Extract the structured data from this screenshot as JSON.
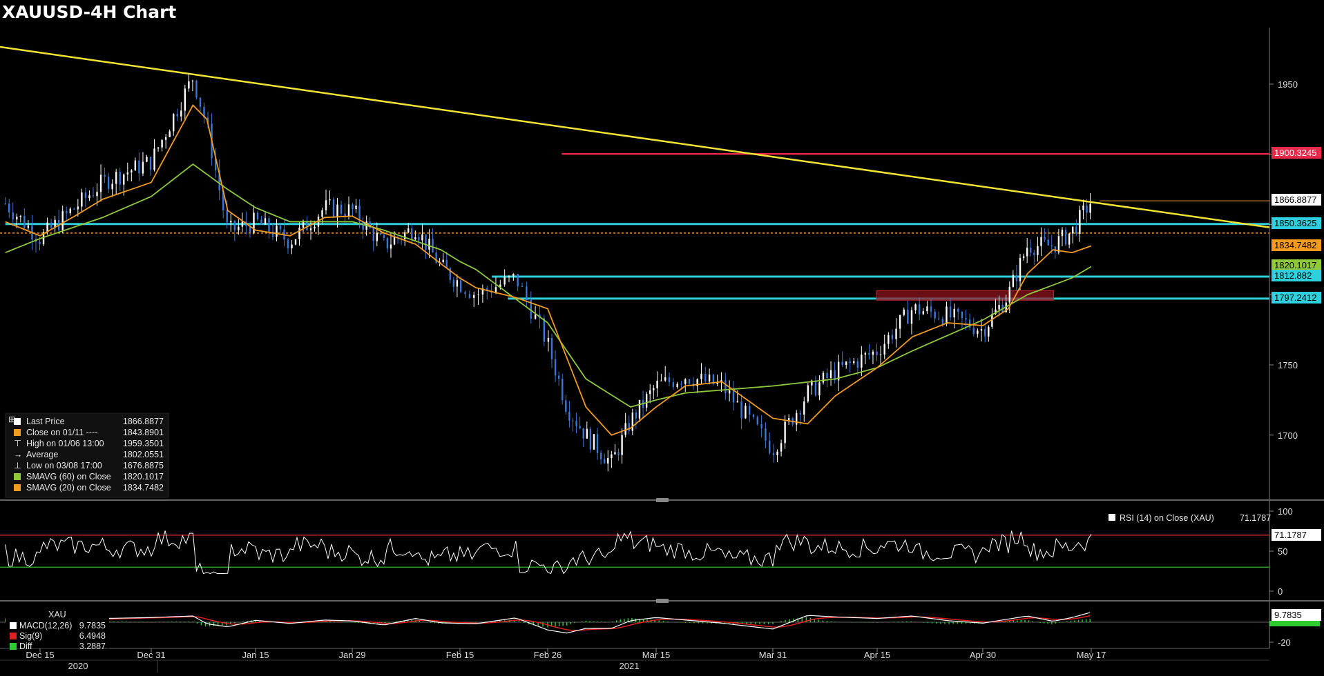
{
  "title": "XAUUSD-4H Chart",
  "colors": {
    "background": "#000000",
    "candle_up": "#ffffff",
    "candle_down": "#3a78d8",
    "trendline": "#f2e533",
    "resistance": "#e8294a",
    "support": "#2fd0de",
    "sma20": "#f29b1f",
    "sma60": "#8fc93a",
    "last_price": "#f29b1f",
    "rsi_upper": "#c0282a",
    "rsi_lower": "#2a9a2a",
    "macd_line": "#ffffff",
    "macd_signal": "#e02020",
    "macd_hist": "#2ecc2e"
  },
  "price_levels": {
    "resistance": "1900.3245",
    "last_price": "1866.8877",
    "support_1": "1850.3625",
    "sma20": "1834.7482",
    "sma60": "1820.1017",
    "support_2": "1812.882",
    "support_3": "1797.2412"
  },
  "legend": [
    {
      "icon": "white-square",
      "label": "Last Price",
      "value": "1866.8877"
    },
    {
      "icon": "orange-square",
      "label": "Close on 01/11 ----",
      "value": "1843.8901"
    },
    {
      "icon": "high-marker",
      "label": "High on 01/06 13:00",
      "value": "1959.3501"
    },
    {
      "icon": "average-marker",
      "label": "Average",
      "value": "1802.0551"
    },
    {
      "icon": "low-marker",
      "label": "Low on 03/08 17:00",
      "value": "1676.8875"
    },
    {
      "icon": "green-square",
      "label": "SMAVG (60)  on Close",
      "value": "1820.1017"
    },
    {
      "icon": "orange-square",
      "label": "SMAVG (20)  on Close",
      "value": "1834.7482"
    }
  ],
  "rsi": {
    "label": "RSI (14)  on Close (XAU)",
    "value": "71.1787",
    "value_tag": "71.1787",
    "levels": [
      70,
      30
    ],
    "ticks": [
      "100",
      "50",
      "0"
    ]
  },
  "macd": {
    "title": "XAU",
    "legend": [
      {
        "label": "MACD(12,26)",
        "value": "9.7835"
      },
      {
        "label": "Sig(9)",
        "value": "6.4948"
      },
      {
        "label": "Diff",
        "value": "3.2887"
      }
    ],
    "value_tag": "9.7835",
    "ticks": [
      "-20"
    ]
  },
  "chart_data": {
    "type": "line",
    "title": "XAUUSD-4H Chart",
    "x_tick_labels": [
      "Dec 15",
      "Dec 31",
      "Jan 15",
      "Jan 29",
      "Feb 15",
      "Feb 26",
      "Mar 15",
      "Mar 31",
      "Apr 15",
      "Apr 30",
      "May 17"
    ],
    "year_labels": [
      "2020",
      "2021"
    ],
    "y_tick_labels": [
      "1950",
      "1900",
      "1850",
      "1800",
      "1750",
      "1700"
    ],
    "ylim": [
      1660,
      1980
    ],
    "series": [
      {
        "name": "Last Price",
        "x": [
          "Dec 10",
          "Dec 15",
          "Dec 20",
          "Dec 24",
          "Dec 31",
          "Jan 06",
          "Jan 08",
          "Jan 11",
          "Jan 15",
          "Jan 20",
          "Jan 25",
          "Jan 29",
          "Feb 03",
          "Feb 08",
          "Feb 12",
          "Feb 17",
          "Feb 22",
          "Feb 26",
          "Mar 01",
          "Mar 04",
          "Mar 08",
          "Mar 11",
          "Mar 15",
          "Mar 19",
          "Mar 24",
          "Mar 31",
          "Apr 05",
          "Apr 09",
          "Apr 15",
          "Apr 20",
          "Apr 25",
          "Apr 30",
          "May 04",
          "May 07",
          "May 11",
          "May 14",
          "May 17"
        ],
        "y": [
          1865,
          1840,
          1862,
          1880,
          1895,
          1955,
          1920,
          1845,
          1852,
          1838,
          1862,
          1860,
          1835,
          1848,
          1820,
          1800,
          1812,
          1765,
          1720,
          1700,
          1680,
          1710,
          1735,
          1742,
          1735,
          1690,
          1730,
          1745,
          1760,
          1790,
          1785,
          1775,
          1800,
          1835,
          1835,
          1845,
          1866.89
        ]
      },
      {
        "name": "SMAVG (20)",
        "x": [
          "Dec 10",
          "Dec 15",
          "Dec 20",
          "Dec 24",
          "Dec 31",
          "Jan 06",
          "Jan 08",
          "Jan 11",
          "Jan 15",
          "Jan 20",
          "Jan 25",
          "Jan 29",
          "Feb 03",
          "Feb 08",
          "Feb 12",
          "Feb 17",
          "Feb 22",
          "Feb 26",
          "Mar 01",
          "Mar 04",
          "Mar 08",
          "Mar 11",
          "Mar 15",
          "Mar 19",
          "Mar 24",
          "Mar 31",
          "Apr 05",
          "Apr 09",
          "Apr 15",
          "Apr 20",
          "Apr 25",
          "Apr 30",
          "May 04",
          "May 07",
          "May 11",
          "May 14",
          "May 17"
        ],
        "y": [
          1852,
          1842,
          1856,
          1868,
          1880,
          1935,
          1925,
          1860,
          1846,
          1842,
          1855,
          1856,
          1844,
          1836,
          1822,
          1805,
          1798,
          1790,
          1755,
          1720,
          1700,
          1705,
          1720,
          1735,
          1738,
          1712,
          1708,
          1728,
          1748,
          1770,
          1780,
          1778,
          1790,
          1815,
          1832,
          1830,
          1834.75
        ]
      },
      {
        "name": "SMAVG (60)",
        "x": [
          "Dec 10",
          "Dec 15",
          "Dec 24",
          "Dec 31",
          "Jan 06",
          "Jan 11",
          "Jan 15",
          "Jan 20",
          "Jan 29",
          "Feb 03",
          "Feb 12",
          "Feb 17",
          "Feb 26",
          "Mar 04",
          "Mar 11",
          "Mar 19",
          "Mar 31",
          "Apr 09",
          "Apr 15",
          "Apr 20",
          "Apr 30",
          "May 07",
          "May 14",
          "May 17"
        ],
        "y": [
          1830,
          1840,
          1855,
          1870,
          1893,
          1875,
          1862,
          1852,
          1852,
          1846,
          1832,
          1818,
          1780,
          1740,
          1720,
          1730,
          1735,
          1740,
          1748,
          1760,
          1782,
          1800,
          1812,
          1820.1
        ]
      }
    ],
    "trendline": {
      "from": [
        "Dec 10",
        1976
      ],
      "to": [
        "May 17",
        1866
      ]
    },
    "resistance": [
      {
        "from": "Mar 04",
        "to": "May 17",
        "y": 1900.3245
      }
    ],
    "support": [
      {
        "from": "Dec 10",
        "to": "May 17",
        "y": 1850.3625
      },
      {
        "from": "Feb 19",
        "to": "May 17",
        "y": 1812.882
      },
      {
        "from": "Feb 21",
        "to": "May 17",
        "y": 1797.2412
      }
    ],
    "supply_zone": {
      "from": "Apr 20",
      "to": "May 10",
      "y1": 1796,
      "y2": 1800
    },
    "grid": false,
    "legend": "bottom-left"
  }
}
